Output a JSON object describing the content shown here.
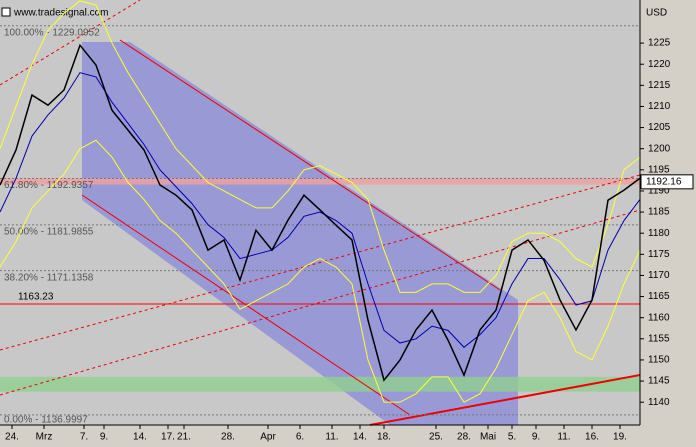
{
  "header": {
    "source": "www.tradesignal.com",
    "currency": "USD"
  },
  "chart_data": {
    "type": "line",
    "xlim": [
      0,
      160
    ],
    "xticks": [
      {
        "value": 3,
        "label": "24."
      },
      {
        "value": 11,
        "label": "Mrz"
      },
      {
        "value": 21,
        "label": "7."
      },
      {
        "value": 26,
        "label": "9."
      },
      {
        "value": 35,
        "label": "14."
      },
      {
        "value": 42,
        "label": "17."
      },
      {
        "value": 46,
        "label": "21."
      },
      {
        "value": 57,
        "label": "28."
      },
      {
        "value": 67,
        "label": "Apr"
      },
      {
        "value": 75,
        "label": "6."
      },
      {
        "value": 83,
        "label": "11."
      },
      {
        "value": 90,
        "label": "14."
      },
      {
        "value": 96,
        "label": "18."
      },
      {
        "value": 109,
        "label": "25."
      },
      {
        "value": 116,
        "label": "28."
      },
      {
        "value": 122,
        "label": "Mai"
      },
      {
        "value": 128,
        "label": "5."
      },
      {
        "value": 134,
        "label": "9."
      },
      {
        "value": 141,
        "label": "11."
      },
      {
        "value": 148,
        "label": "16."
      },
      {
        "value": 155,
        "label": "19."
      }
    ],
    "ylim": [
      1134.6,
      1235.2
    ],
    "yticks": [
      1140,
      1145,
      1150,
      1155,
      1160,
      1165,
      1170,
      1175,
      1180,
      1185,
      1190,
      1195,
      1200,
      1205,
      1210,
      1215,
      1220,
      1225
    ],
    "x": [
      0,
      4,
      8,
      12,
      16,
      20,
      24,
      28,
      32,
      36,
      40,
      44,
      48,
      52,
      56,
      60,
      64,
      68,
      72,
      76,
      80,
      84,
      88,
      92,
      96,
      100,
      104,
      108,
      112,
      116,
      120,
      124,
      128,
      132,
      136,
      140,
      144,
      148,
      152,
      156,
      160
    ],
    "series": [
      {
        "color": "#ffff33",
        "values": [
          1200,
          1210,
          1220,
          1228,
          1232,
          1235,
          1234,
          1225,
          1218,
          1212,
          1206,
          1200,
          1196,
          1192,
          1190,
          1188,
          1186,
          1186,
          1190,
          1195,
          1196,
          1194,
          1192,
          1188,
          1176,
          1166,
          1166,
          1168,
          1168,
          1166,
          1166,
          1170,
          1178,
          1180,
          1180,
          1178,
          1174,
          1172,
          1182,
          1195,
          1198
        ]
      },
      {
        "color": "#ffff33",
        "values": [
          1172,
          1178,
          1186,
          1190,
          1194,
          1200,
          1202,
          1198,
          1192,
          1188,
          1183,
          1180,
          1176,
          1172,
          1168,
          1162,
          1164,
          1166,
          1168,
          1172,
          1174,
          1172,
          1168,
          1150,
          1140,
          1140,
          1142,
          1146,
          1146,
          1140,
          1142,
          1148,
          1156,
          1164,
          1166,
          1160,
          1152,
          1150,
          1158,
          1168,
          1176
        ]
      },
      {
        "color": "#0000aa",
        "values": [
          1185,
          1193,
          1203,
          1208,
          1212,
          1218,
          1217,
          1211,
          1206,
          1201,
          1195,
          1191,
          1187,
          1182,
          1179,
          1174,
          1175,
          1176,
          1179,
          1184,
          1185,
          1183,
          1180,
          1168,
          1157,
          1154,
          1155,
          1158,
          1157,
          1153,
          1156,
          1160,
          1168,
          1174,
          1174,
          1169,
          1163,
          1164,
          1176,
          1183,
          1188
        ]
      },
      {
        "color": "#000000",
        "values": [
          1191.4,
          1199.7,
          1212.7,
          1210.3,
          1213.9,
          1224.5,
          1219.8,
          1209.1,
          1204.4,
          1199.7,
          1191.4,
          1189,
          1185.5,
          1176,
          1178.4,
          1168.9,
          1180.7,
          1176,
          1183.1,
          1189,
          1185.5,
          1181.9,
          1178.4,
          1159.4,
          1145.2,
          1150,
          1157.1,
          1161.8,
          1154.7,
          1146.4,
          1157.1,
          1161.8,
          1176,
          1178.4,
          1173.6,
          1164.2,
          1157.1,
          1164.2,
          1187.8,
          1190.2,
          1193
        ]
      }
    ],
    "levels": [
      {
        "value": 1229.0952,
        "label": "100.00% - 1229.0952"
      },
      {
        "value": 1192.9357,
        "label": "61.80% - 1192.9357"
      },
      {
        "value": 1181.9855,
        "label": "50.00% - 1181.9855"
      },
      {
        "value": 1171.1358,
        "label": "38.20% - 1171.1358"
      },
      {
        "value": 1136.9997,
        "label": "0.00% - 1136.9997"
      }
    ],
    "support": {
      "value": 1163.23,
      "label": "1163.23",
      "color": "#ff0000"
    },
    "last_price": {
      "value": 1192.16,
      "label": "1192.16"
    },
    "zone_band": {
      "range": [
        1142.5,
        1146
      ],
      "color": "#90d090"
    },
    "resistance_band": {
      "range": [
        1191.5,
        1193
      ],
      "color": "#f0a0a0"
    }
  }
}
